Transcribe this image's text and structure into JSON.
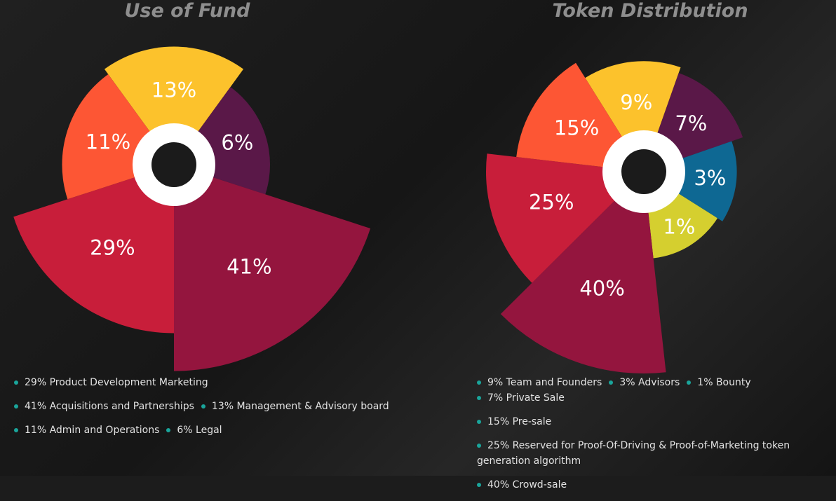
{
  "chart_data": [
    {
      "type": "pie",
      "title": "Use of Fund",
      "categories": [
        "Management & Advisory board",
        "Legal",
        "Acquisitions and Partnerships",
        "Product Development Marketing",
        "Admin and Operations"
      ],
      "values": [
        13,
        6,
        41,
        29,
        11
      ],
      "value_labels": [
        "13%",
        "6%",
        "41%",
        "29%",
        "11%"
      ],
      "colors": [
        "#fcc22c",
        "#5a1848",
        "#94153e",
        "#c81e3a",
        "#fd5634"
      ],
      "legend": [
        [
          "29% Product Development Marketing"
        ],
        [
          "41% Acquisitions and Partnerships",
          "13% Management & Advisory board"
        ],
        [
          "11% Admin and Operations",
          "6% Legal"
        ]
      ]
    },
    {
      "type": "pie",
      "title": "Token Distribution",
      "categories": [
        "Team and Founders",
        "Private Sale",
        "Advisors",
        "Bounty",
        "Crowd-sale",
        "Reserved for Proof-Of-Driving & Proof-of-Marketing token generation algorithm",
        "Pre-sale"
      ],
      "values": [
        9,
        7,
        3,
        1,
        40,
        25,
        15
      ],
      "value_labels": [
        "9%",
        "7%",
        "3%",
        "1%",
        "40%",
        "25%",
        "15%"
      ],
      "colors": [
        "#fcc22c",
        "#5a1848",
        "#0e6893",
        "#d5cf2f",
        "#94153e",
        "#c81e3a",
        "#fd5634"
      ],
      "legend": [
        [
          "9% Team and Founders",
          "3% Advisors",
          "1% Bounty",
          "7% Private Sale"
        ],
        [
          "15% Pre-sale"
        ],
        [
          "25% Reserved for Proof-Of-Driving & Proof-of-Marketing token generation algorithm"
        ],
        [
          "40% Crowd-sale"
        ]
      ]
    }
  ]
}
